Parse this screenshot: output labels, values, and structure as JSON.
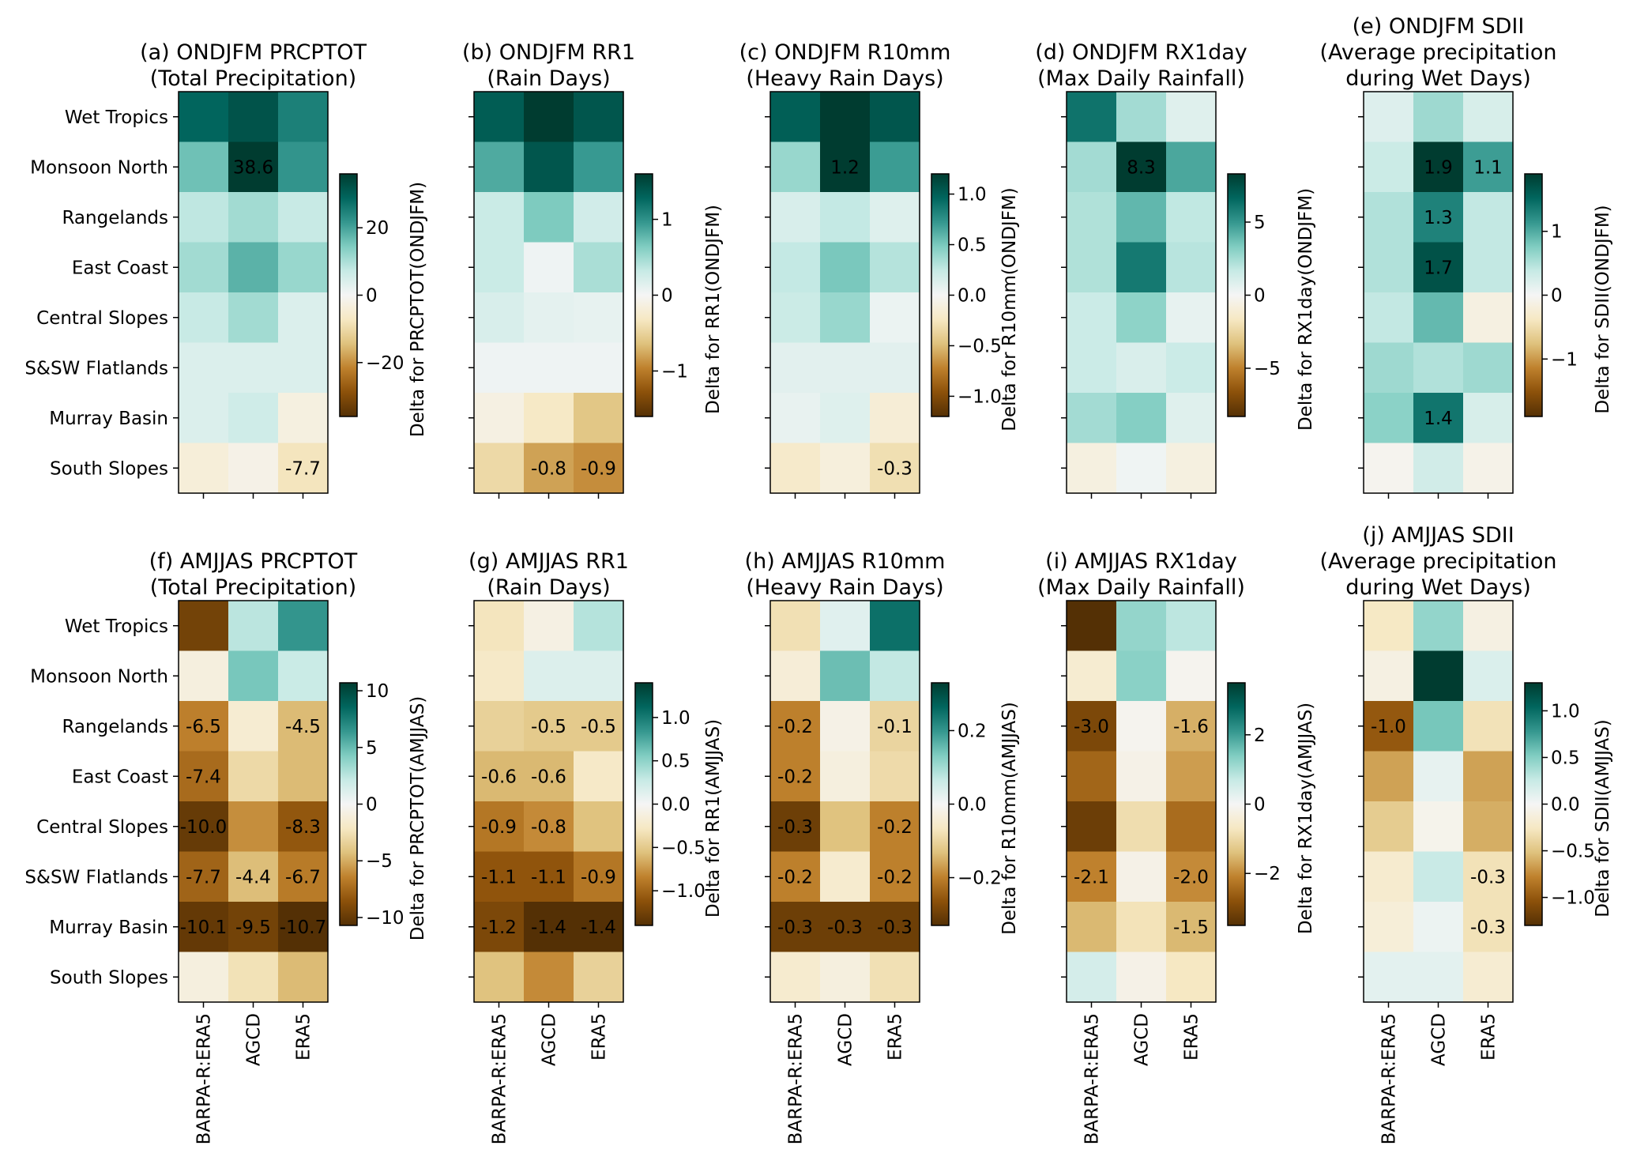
{
  "chart_data": {
    "type": "heatmap",
    "rows": [
      "Wet Tropics",
      "Monsoon North",
      "Rangelands",
      "East Coast",
      "Central Slopes",
      "S&SW Flatlands",
      "Murray Basin",
      "South Slopes"
    ],
    "columns": [
      "BARPA-R:ERA5",
      "AGCD",
      "ERA5"
    ],
    "colormap": "BrBG",
    "panels": [
      {
        "id": "a",
        "title": [
          "(a) ONDJFM PRCPTOT",
          "(Total Precipitation)"
        ],
        "colorbar_label": "Delta for PRCPTOT(ONDJFM)",
        "vlim": [
          -36,
          36
        ],
        "ticks": [
          -20,
          0,
          20
        ],
        "tick_labels": [
          "−20",
          "0",
          "20"
        ],
        "values": [
          [
            29,
            32,
            25
          ],
          [
            16,
            38.6,
            22
          ],
          [
            8,
            11,
            7
          ],
          [
            11,
            18,
            12
          ],
          [
            7,
            11,
            4
          ],
          [
            4,
            4,
            4
          ],
          [
            4,
            6,
            -3
          ],
          [
            -4,
            -2,
            -7.7
          ]
        ],
        "labels": [
          [
            "",
            "",
            ""
          ],
          [
            "",
            "38.6",
            ""
          ],
          [
            "",
            "",
            ""
          ],
          [
            "",
            "",
            ""
          ],
          [
            "",
            "",
            ""
          ],
          [
            "",
            "",
            ""
          ],
          [
            "",
            "",
            ""
          ],
          [
            "",
            "",
            "-7.7"
          ]
        ]
      },
      {
        "id": "b",
        "title": [
          "(b) ONDJFM RR1",
          "(Rain Days)"
        ],
        "colorbar_label": "Delta for RR1(ONDJFM)",
        "vlim": [
          -1.6,
          1.6
        ],
        "ticks": [
          -1,
          0,
          1
        ],
        "tick_labels": [
          "−1",
          "0",
          "1"
        ],
        "values": [
          [
            1.35,
            1.6,
            1.4
          ],
          [
            0.85,
            1.4,
            0.95
          ],
          [
            0.3,
            0.65,
            0.25
          ],
          [
            0.3,
            0.05,
            0.45
          ],
          [
            0.2,
            0.12,
            0.1
          ],
          [
            0.05,
            0.05,
            0.05
          ],
          [
            -0.12,
            -0.3,
            -0.6
          ],
          [
            -0.45,
            -0.8,
            -0.9
          ]
        ],
        "labels": [
          [
            "",
            "",
            ""
          ],
          [
            "",
            "",
            ""
          ],
          [
            "",
            "",
            ""
          ],
          [
            "",
            "",
            ""
          ],
          [
            "",
            "",
            ""
          ],
          [
            "",
            "",
            ""
          ],
          [
            "",
            "",
            ""
          ],
          [
            "",
            "-0.8",
            "-0.9"
          ]
        ]
      },
      {
        "id": "c",
        "title": [
          "(c) ONDJFM R10mm",
          "(Heavy Rain Days)"
        ],
        "colorbar_label": "Delta for R10mm(ONDJFM)",
        "vlim": [
          -1.2,
          1.2
        ],
        "ticks": [
          -1.0,
          -0.5,
          0.0,
          0.5,
          1.0
        ],
        "tick_labels": [
          "−1.0",
          "−0.5",
          "0.0",
          "0.5",
          "1.0"
        ],
        "values": [
          [
            1.0,
            1.2,
            1.05
          ],
          [
            0.4,
            1.2,
            0.7
          ],
          [
            0.15,
            0.25,
            0.12
          ],
          [
            0.25,
            0.5,
            0.3
          ],
          [
            0.22,
            0.4,
            0.05
          ],
          [
            0.1,
            0.1,
            0.1
          ],
          [
            0.07,
            0.12,
            -0.15
          ],
          [
            -0.2,
            -0.12,
            -0.3
          ]
        ],
        "labels": [
          [
            "",
            "",
            ""
          ],
          [
            "",
            "1.2",
            ""
          ],
          [
            "",
            "",
            ""
          ],
          [
            "",
            "",
            ""
          ],
          [
            "",
            "",
            ""
          ],
          [
            "",
            "",
            ""
          ],
          [
            "",
            "",
            ""
          ],
          [
            "",
            "",
            "-0.3"
          ]
        ]
      },
      {
        "id": "d",
        "title": [
          "(d) ONDJFM RX1day",
          "(Max Daily Rainfall)"
        ],
        "colorbar_label": "Delta for RX1day(ONDJFM)",
        "vlim": [
          -8.3,
          8.3
        ],
        "ticks": [
          -5,
          0,
          5
        ],
        "tick_labels": [
          "−5",
          "0",
          "5"
        ],
        "values": [
          [
            6.2,
            2.5,
            0.8
          ],
          [
            2.5,
            8.3,
            4.5
          ],
          [
            2.2,
            4.0,
            1.8
          ],
          [
            2.2,
            6.0,
            2.0
          ],
          [
            1.5,
            3.0,
            0.5
          ],
          [
            1.5,
            1.0,
            1.5
          ],
          [
            2.5,
            3.2,
            0.8
          ],
          [
            -0.7,
            0.2,
            -0.7
          ]
        ],
        "labels": [
          [
            "",
            "",
            ""
          ],
          [
            "",
            "8.3",
            ""
          ],
          [
            "",
            "",
            ""
          ],
          [
            "",
            "",
            ""
          ],
          [
            "",
            "",
            ""
          ],
          [
            "",
            "",
            ""
          ],
          [
            "",
            "",
            ""
          ],
          [
            "",
            "",
            ""
          ]
        ]
      },
      {
        "id": "e",
        "title": [
          "(e) ONDJFM SDII",
          "(Average precipitation",
          "during Wet Days)"
        ],
        "colorbar_label": "Delta for SDII(ONDJFM)",
        "vlim": [
          -1.9,
          1.9
        ],
        "ticks": [
          -1,
          0,
          1
        ],
        "tick_labels": [
          "−1",
          "0",
          "1"
        ],
        "values": [
          [
            0.2,
            0.6,
            0.25
          ],
          [
            0.35,
            1.9,
            1.1
          ],
          [
            0.5,
            1.3,
            0.4
          ],
          [
            0.5,
            1.7,
            0.4
          ],
          [
            0.4,
            0.9,
            -0.15
          ],
          [
            0.6,
            0.5,
            0.6
          ],
          [
            0.7,
            1.4,
            0.25
          ],
          [
            -0.05,
            0.3,
            -0.1
          ]
        ],
        "labels": [
          [
            "",
            "",
            ""
          ],
          [
            "",
            "1.9",
            "1.1"
          ],
          [
            "",
            "1.3",
            ""
          ],
          [
            "",
            "1.7",
            ""
          ],
          [
            "",
            "",
            ""
          ],
          [
            "",
            "",
            ""
          ],
          [
            "",
            "1.4",
            ""
          ],
          [
            "",
            "",
            ""
          ]
        ]
      },
      {
        "id": "f",
        "title": [
          "(f) AMJJAS PRCPTOT",
          "(Total Precipitation)"
        ],
        "colorbar_label": "Delta for PRCPTOT(AMJJAS)",
        "vlim": [
          -10.7,
          10.7
        ],
        "ticks": [
          -10,
          -5,
          0,
          5,
          10
        ],
        "tick_labels": [
          "−10",
          "−5",
          "0",
          "5",
          "10"
        ],
        "values": [
          [
            -9.5,
            2.5,
            6.5
          ],
          [
            -1.0,
            4.5,
            2.0
          ],
          [
            -6.5,
            -1.5,
            -4.5
          ],
          [
            -7.4,
            -3.0,
            -4.5
          ],
          [
            -10.0,
            -6.0,
            -8.3
          ],
          [
            -7.7,
            -4.4,
            -6.7
          ],
          [
            -10.1,
            -9.5,
            -10.7
          ],
          [
            -1.0,
            -2.5,
            -4.5
          ]
        ],
        "labels": [
          [
            "",
            "",
            ""
          ],
          [
            "",
            "",
            ""
          ],
          [
            "-6.5",
            "",
            "-4.5"
          ],
          [
            "-7.4",
            "",
            ""
          ],
          [
            "-10.0",
            "",
            "-8.3"
          ],
          [
            "-7.7",
            "-4.4",
            "-6.7"
          ],
          [
            "-10.1",
            "-9.5",
            "-10.7"
          ],
          [
            "",
            "",
            ""
          ]
        ]
      },
      {
        "id": "g",
        "title": [
          "(g) AMJJAS RR1",
          "(Rain Days)"
        ],
        "colorbar_label": "Delta for RR1(AMJJAS)",
        "vlim": [
          -1.4,
          1.4
        ],
        "ticks": [
          -1.0,
          -0.5,
          0.0,
          0.5,
          1.0
        ],
        "tick_labels": [
          "−1.0",
          "−0.5",
          "0.0",
          "0.5",
          "1.0"
        ],
        "values": [
          [
            -0.3,
            -0.1,
            0.35
          ],
          [
            -0.25,
            0.15,
            0.15
          ],
          [
            -0.45,
            -0.5,
            -0.5
          ],
          [
            -0.6,
            -0.6,
            -0.25
          ],
          [
            -0.9,
            -0.8,
            -0.55
          ],
          [
            -1.1,
            -1.1,
            -0.9
          ],
          [
            -1.2,
            -1.4,
            -1.4
          ],
          [
            -0.55,
            -0.8,
            -0.45
          ]
        ],
        "labels": [
          [
            "",
            "",
            ""
          ],
          [
            "",
            "",
            ""
          ],
          [
            "",
            "-0.5",
            "-0.5"
          ],
          [
            "-0.6",
            "-0.6",
            ""
          ],
          [
            "-0.9",
            "-0.8",
            ""
          ],
          [
            "-1.1",
            "-1.1",
            "-0.9"
          ],
          [
            "-1.2",
            "-1.4",
            "-1.4"
          ],
          [
            "",
            "",
            ""
          ]
        ]
      },
      {
        "id": "h",
        "title": [
          "(h) AMJJAS R10mm",
          "(Heavy Rain Days)"
        ],
        "colorbar_label": "Delta for R10mm(AMJJAS)",
        "vlim": [
          -0.33,
          0.33
        ],
        "ticks": [
          -0.2,
          0.0,
          0.2
        ],
        "tick_labels": [
          "−0.2",
          "0.0",
          "0.2"
        ],
        "values": [
          [
            -0.08,
            0.03,
            0.25
          ],
          [
            -0.04,
            0.15,
            0.07
          ],
          [
            -0.2,
            -0.02,
            -0.1
          ],
          [
            -0.2,
            -0.03,
            -0.09
          ],
          [
            -0.3,
            -0.13,
            -0.2
          ],
          [
            -0.2,
            -0.05,
            -0.2
          ],
          [
            -0.3,
            -0.3,
            -0.3
          ],
          [
            -0.05,
            -0.03,
            -0.08
          ]
        ],
        "labels": [
          [
            "",
            "",
            ""
          ],
          [
            "",
            "",
            ""
          ],
          [
            "-0.2",
            "",
            "-0.1"
          ],
          [
            "-0.2",
            "",
            ""
          ],
          [
            "-0.3",
            "",
            "-0.2"
          ],
          [
            "-0.2",
            "",
            "-0.2"
          ],
          [
            "-0.3",
            "-0.3",
            "-0.3"
          ],
          [
            "",
            "",
            ""
          ]
        ]
      },
      {
        "id": "i",
        "title": [
          "(i) AMJJAS RX1day",
          "(Max Daily Rainfall)"
        ],
        "colorbar_label": "Delta for RX1day(AMJJAS)",
        "vlim": [
          -3.5,
          3.5
        ],
        "ticks": [
          -2,
          0,
          2
        ],
        "tick_labels": [
          "−2",
          "0",
          "2"
        ],
        "values": [
          [
            -3.5,
            1.2,
            0.8
          ],
          [
            -0.5,
            1.3,
            -0.1
          ],
          [
            -3.0,
            -0.1,
            -1.6
          ],
          [
            -2.5,
            -0.2,
            -1.8
          ],
          [
            -3.2,
            -0.9,
            -2.4
          ],
          [
            -2.1,
            -0.2,
            -2.0
          ],
          [
            -1.5,
            -0.8,
            -1.5
          ],
          [
            0.5,
            -0.2,
            -0.7
          ]
        ],
        "labels": [
          [
            "",
            "",
            ""
          ],
          [
            "",
            "",
            ""
          ],
          [
            "-3.0",
            "",
            "-1.6"
          ],
          [
            "",
            "",
            ""
          ],
          [
            "",
            "",
            ""
          ],
          [
            "-2.1",
            "",
            "-2.0"
          ],
          [
            "",
            "",
            "-1.5"
          ],
          [
            "",
            "",
            ""
          ]
        ]
      },
      {
        "id": "j",
        "title": [
          "(j) AMJJAS SDII",
          "(Average precipitation",
          "during Wet Days)"
        ],
        "colorbar_label": "Delta for SDII(AMJJAS)",
        "vlim": [
          -1.3,
          1.3
        ],
        "ticks": [
          -1.0,
          -0.5,
          0.0,
          0.5,
          1.0
        ],
        "tick_labels": [
          "−1.0",
          "−0.5",
          "0.0",
          "0.5",
          "1.0"
        ],
        "values": [
          [
            -0.25,
            0.45,
            -0.1
          ],
          [
            -0.1,
            1.3,
            0.15
          ],
          [
            -1.0,
            0.55,
            -0.3
          ],
          [
            -0.65,
            0.08,
            -0.65
          ],
          [
            -0.45,
            -0.05,
            -0.6
          ],
          [
            -0.2,
            0.25,
            -0.3
          ],
          [
            -0.15,
            0.05,
            -0.3
          ],
          [
            0.1,
            0.1,
            -0.18
          ]
        ],
        "labels": [
          [
            "",
            "",
            ""
          ],
          [
            "",
            "",
            ""
          ],
          [
            "-1.0",
            "",
            ""
          ],
          [
            "",
            "",
            ""
          ],
          [
            "",
            "",
            ""
          ],
          [
            "",
            "",
            "-0.3"
          ],
          [
            "",
            "",
            "-0.3"
          ],
          [
            "",
            "",
            ""
          ]
        ]
      }
    ]
  }
}
